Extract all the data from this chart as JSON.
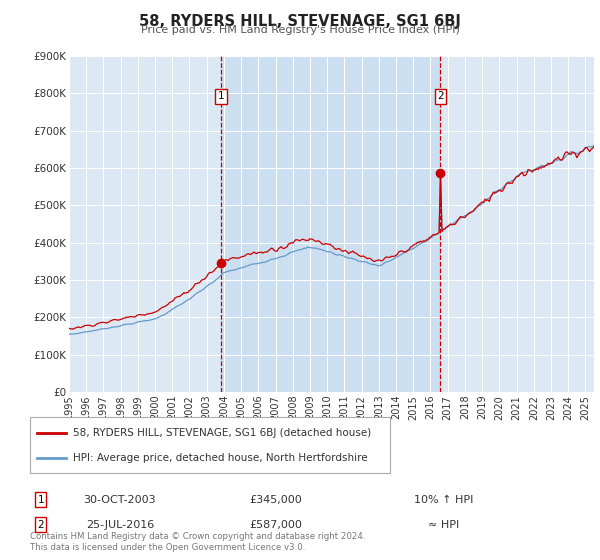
{
  "title": "58, RYDERS HILL, STEVENAGE, SG1 6BJ",
  "subtitle": "Price paid vs. HM Land Registry's House Price Index (HPI)",
  "red_label": "58, RYDERS HILL, STEVENAGE, SG1 6BJ (detached house)",
  "blue_label": "HPI: Average price, detached house, North Hertfordshire",
  "sale1_date": "30-OCT-2003",
  "sale1_price": 345000,
  "sale1_note": "10% ↑ HPI",
  "sale2_date": "25-JUL-2016",
  "sale2_price": 587000,
  "sale2_note": "≈ HPI",
  "sale1_x": 2003.83,
  "sale2_x": 2016.56,
  "ylim": [
    0,
    900000
  ],
  "xlim_start": 1995.0,
  "xlim_end": 2025.5,
  "background_color": "#ffffff",
  "plot_bg_color": "#dce9f5",
  "shade_color": "#ccdff0",
  "grid_color": "#ffffff",
  "red_color": "#cc0000",
  "blue_color": "#6699cc",
  "dashed_color": "#cc0000",
  "footer_text": "Contains HM Land Registry data © Crown copyright and database right 2024.\nThis data is licensed under the Open Government Licence v3.0.",
  "yticks": [
    0,
    100000,
    200000,
    300000,
    400000,
    500000,
    600000,
    700000,
    800000,
    900000
  ],
  "ytick_labels": [
    "£0",
    "£100K",
    "£200K",
    "£300K",
    "£400K",
    "£500K",
    "£600K",
    "£700K",
    "£800K",
    "£900K"
  ],
  "xtick_years": [
    1995,
    1996,
    1997,
    1998,
    1999,
    2000,
    2001,
    2002,
    2003,
    2004,
    2005,
    2006,
    2007,
    2008,
    2009,
    2010,
    2011,
    2012,
    2013,
    2014,
    2015,
    2016,
    2017,
    2018,
    2019,
    2020,
    2021,
    2022,
    2023,
    2024,
    2025
  ]
}
